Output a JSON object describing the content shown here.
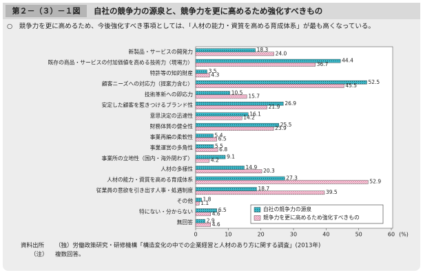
{
  "chart_data": {
    "type": "hbar",
    "figure_number": "第２－（３）－１図",
    "title": "自社の競争力の源泉と、競争力を更に高めるため強化すべきもの",
    "subtitle": "○　競争力を更に高めるため、今後強化すべき事項としては、「人材の能力・資質を高める育成体系」が最も高くなっている。",
    "categories": [
      "新製品・サービスの開発力",
      "既存の商品・サービスの付加価値を高める技術力（現場力）",
      "特許等の知的財産",
      "顧客ニーズへの対応力（提案力含む）",
      "技術革新への即応力",
      "安定した顧客を惹きつけるブランド性",
      "意思決定の迅速性",
      "財務体質の健全性",
      "事業再編の柔軟性",
      "事業運営の多角性",
      "事業所の立地性（国内・海外問わず）",
      "人材の多様性",
      "人材の能力・資質を高める育成体系",
      "従業員の意欲を引き出す人事・処遇制度",
      "その他",
      "特にない・分からない",
      "無回答"
    ],
    "series": [
      {
        "name": "自社の競争力の源泉",
        "color": "#3cb6c6",
        "values": [
          18.3,
          44.4,
          3.5,
          52.5,
          10.5,
          26.9,
          16.1,
          25.5,
          5.4,
          5.5,
          9.1,
          14.9,
          27.3,
          18.7,
          1.8,
          6.5,
          2.9
        ],
        "value_labels": [
          "18.3",
          "44.4",
          "3.5",
          "52.5",
          "10.5",
          "26.9",
          "16.1",
          "25.5",
          "5.4",
          "5.5",
          "9.1",
          "14.9",
          "27.3",
          "18.7",
          "1.8",
          "6.5",
          "2.9"
        ]
      },
      {
        "name": "競争力を更に高めるため強化すべきもの",
        "color": "#e58fae",
        "values": [
          24.0,
          36.7,
          4.3,
          45.5,
          15.7,
          21.9,
          14.2,
          23.9,
          6.5,
          6.8,
          4.2,
          20.3,
          52.9,
          39.5,
          1.1,
          4.6,
          4.6
        ],
        "value_labels": [
          "24.0",
          "36.7",
          "4.3",
          "45.5",
          "15.7",
          "21.9",
          "14.2",
          "23.9",
          "6.5",
          "6.8",
          "4.2",
          "20.3",
          "52.9",
          "39.5",
          "1.1",
          "4.6",
          "4.6"
        ]
      }
    ],
    "xlim": [
      0,
      60
    ],
    "xticks": [
      0,
      10,
      20,
      30,
      40,
      50,
      60
    ],
    "x_label": "(%)",
    "legend": "lower-right",
    "source_label": "資料出所",
    "source": "（独）労働政策研究・研修機構「構造変化の中での企業経営と人材のあり方に関する調査」(2013年)",
    "note_label": "（注）",
    "note": "複数回答。"
  }
}
